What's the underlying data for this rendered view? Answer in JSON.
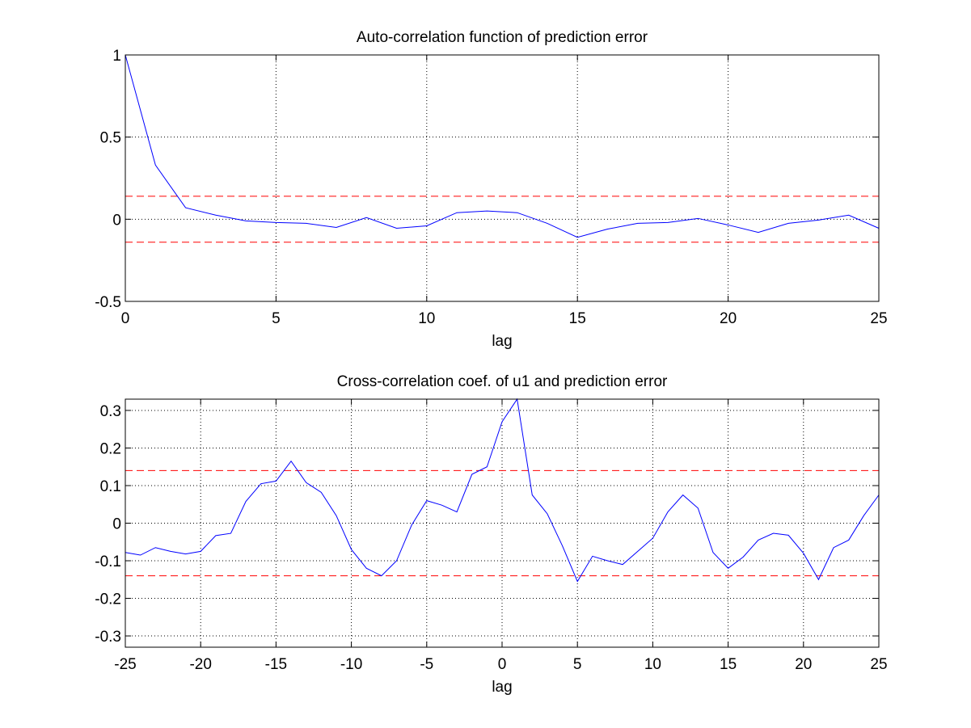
{
  "chart_data": [
    {
      "type": "line",
      "title": "Auto-correlation function of prediction error",
      "xlabel": "lag",
      "ylabel": "",
      "xlim": [
        0,
        25
      ],
      "ylim": [
        -0.5,
        1
      ],
      "xticks": [
        0,
        5,
        10,
        15,
        20,
        25
      ],
      "xtick_labels": [
        "0",
        "5",
        "10",
        "15",
        "20",
        "25"
      ],
      "yticks": [
        -0.5,
        0,
        0.5,
        1
      ],
      "ytick_labels": [
        "-0.5",
        "0",
        "0.5",
        "1"
      ],
      "grid": true,
      "line_color": "#0000ff",
      "conf_color": "#ff0000",
      "confidence_bounds": [
        0.14,
        -0.14
      ],
      "x": [
        0,
        1,
        2,
        3,
        4,
        5,
        6,
        7,
        8,
        9,
        10,
        11,
        12,
        13,
        14,
        15,
        16,
        17,
        18,
        19,
        20,
        21,
        22,
        23,
        24,
        25
      ],
      "y": [
        1.0,
        0.33,
        0.07,
        0.025,
        -0.01,
        -0.02,
        -0.025,
        -0.05,
        0.01,
        -0.055,
        -0.04,
        0.04,
        0.05,
        0.04,
        -0.025,
        -0.11,
        -0.06,
        -0.025,
        -0.02,
        0.005,
        -0.035,
        -0.08,
        -0.025,
        -0.005,
        0.025,
        -0.055
      ]
    },
    {
      "type": "line",
      "title": "Cross-correlation coef. of u1 and prediction error",
      "xlabel": "lag",
      "ylabel": "",
      "xlim": [
        -25,
        25
      ],
      "ylim": [
        -0.33,
        0.33
      ],
      "xticks": [
        -25,
        -20,
        -15,
        -10,
        -5,
        0,
        5,
        10,
        15,
        20,
        25
      ],
      "xtick_labels": [
        "-25",
        "-20",
        "-15",
        "-10",
        "-5",
        "0",
        "5",
        "10",
        "15",
        "20",
        "25"
      ],
      "yticks": [
        -0.3,
        -0.2,
        -0.1,
        0,
        0.1,
        0.2,
        0.3
      ],
      "ytick_labels": [
        "-0.3",
        "-0.2",
        "-0.1",
        "0",
        "0.1",
        "0.2",
        "0.3"
      ],
      "grid": true,
      "line_color": "#0000ff",
      "conf_color": "#ff0000",
      "confidence_bounds": [
        0.14,
        -0.14
      ],
      "x": [
        -25,
        -24,
        -23,
        -22,
        -21,
        -20,
        -19,
        -18,
        -17,
        -16,
        -15,
        -14,
        -13,
        -12,
        -11,
        -10,
        -9,
        -8,
        -7,
        -6,
        -5,
        -4,
        -3,
        -2,
        -1,
        0,
        1,
        2,
        3,
        4,
        5,
        6,
        7,
        8,
        9,
        10,
        11,
        12,
        13,
        14,
        15,
        16,
        17,
        18,
        19,
        20,
        21,
        22,
        23,
        24,
        25
      ],
      "y": [
        -0.078,
        -0.085,
        -0.065,
        -0.075,
        -0.082,
        -0.075,
        -0.033,
        -0.027,
        0.058,
        0.105,
        0.112,
        0.165,
        0.108,
        0.082,
        0.02,
        -0.07,
        -0.12,
        -0.14,
        -0.1,
        -0.005,
        0.06,
        0.048,
        0.03,
        0.13,
        0.15,
        0.27,
        0.33,
        0.075,
        0.025,
        -0.06,
        -0.155,
        -0.088,
        -0.1,
        -0.11,
        -0.075,
        -0.04,
        0.03,
        0.075,
        0.04,
        -0.078,
        -0.12,
        -0.09,
        -0.045,
        -0.027,
        -0.032,
        -0.08,
        -0.15,
        -0.065,
        -0.045,
        0.02,
        0.075
      ]
    }
  ]
}
